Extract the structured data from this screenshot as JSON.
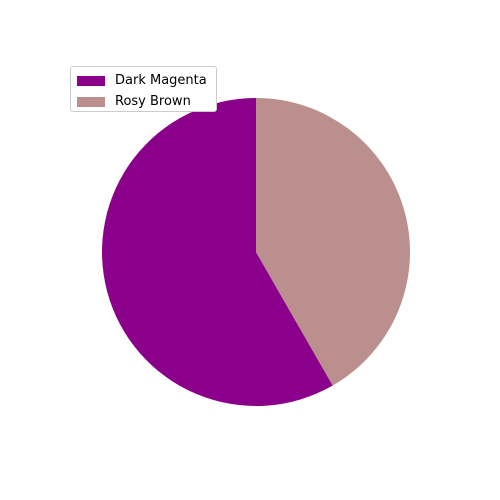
{
  "chart_data": {
    "type": "pie",
    "title": "",
    "slices": [
      {
        "label": "Dark Magenta",
        "value": 58.3,
        "color": "#8b008b"
      },
      {
        "label": "Rosy Brown",
        "value": 41.7,
        "color": "#bc8f8f"
      }
    ],
    "start_angle_deg": 90,
    "direction": "counterclockwise",
    "legend": {
      "placement": "top-left",
      "entries": [
        "Dark Magenta",
        "Rosy Brown"
      ]
    }
  }
}
